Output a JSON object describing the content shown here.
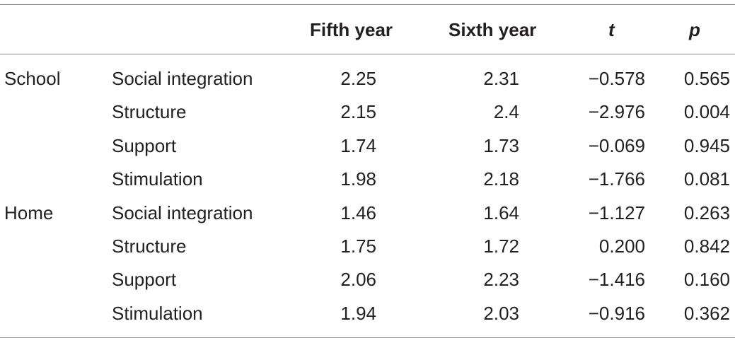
{
  "table": {
    "headers": {
      "group": "",
      "variable": "",
      "fifth_year": "Fifth year",
      "sixth_year": "Sixth year",
      "t": "t",
      "p": "p"
    },
    "rows": [
      {
        "group": "School",
        "variable": "Social integration",
        "fifth": "2.25",
        "sixth": "2.31",
        "t": "−0.578",
        "p": "0.565"
      },
      {
        "group": "",
        "variable": "Structure",
        "fifth": "2.15",
        "sixth": "2.4",
        "t": "−2.976",
        "p": "0.004"
      },
      {
        "group": "",
        "variable": "Support",
        "fifth": "1.74",
        "sixth": "1.73",
        "t": "−0.069",
        "p": "0.945"
      },
      {
        "group": "",
        "variable": "Stimulation",
        "fifth": "1.98",
        "sixth": "2.18",
        "t": "−1.766",
        "p": "0.081"
      },
      {
        "group": "Home",
        "variable": "Social integration",
        "fifth": "1.46",
        "sixth": "1.64",
        "t": "−1.127",
        "p": "0.263"
      },
      {
        "group": "",
        "variable": "Structure",
        "fifth": "1.75",
        "sixth": "1.72",
        "t": "0.200",
        "p": "0.842"
      },
      {
        "group": "",
        "variable": "Support",
        "fifth": "2.06",
        "sixth": "2.23",
        "t": "−1.416",
        "p": "0.160"
      },
      {
        "group": "",
        "variable": "Stimulation",
        "fifth": "1.94",
        "sixth": "2.03",
        "t": "−0.916",
        "p": "0.362"
      }
    ]
  },
  "colors": {
    "text": "#231f20",
    "rule": "#8c8c8c",
    "background": "#ffffff"
  }
}
